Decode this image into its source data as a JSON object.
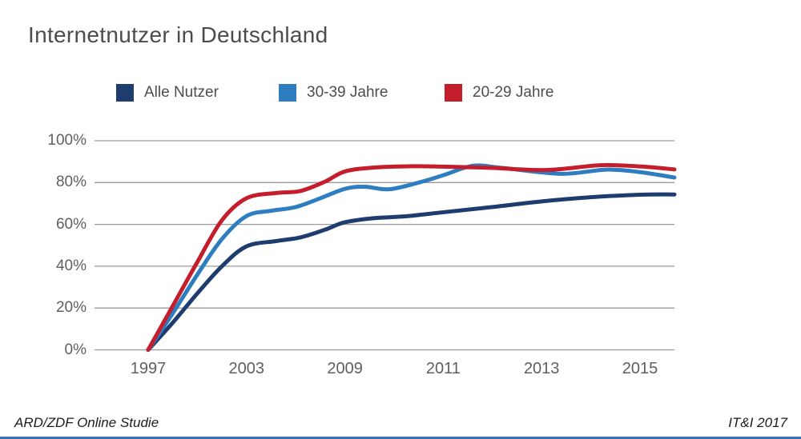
{
  "title": "Internetnutzer in Deutschland",
  "footer": {
    "source": "ARD/ZDF Online Studie",
    "credit": "IT&I 2017"
  },
  "colors": {
    "accent_bar": "#3a73ae",
    "grid": "#9a9a9a",
    "title_text": "#4c4c4c",
    "tick_text": "#5f5f5f"
  },
  "chart_data": {
    "type": "line",
    "title": "Internetnutzer in Deutschland",
    "xlabel": "",
    "ylabel": "",
    "ylim": [
      0,
      100
    ],
    "grid": true,
    "legend_position": "top",
    "y_ticks_percent": [
      0,
      20,
      40,
      60,
      80,
      100
    ],
    "x_tick_units": [
      0,
      1,
      2,
      3,
      4,
      5
    ],
    "x_tick_labels": [
      "1997",
      "2003",
      "2009",
      "2011",
      "2013",
      "2015"
    ],
    "series": [
      {
        "name": "Alle Nutzer",
        "color": "#1e3c6e",
        "points": [
          [
            0,
            0
          ],
          [
            0.25,
            13
          ],
          [
            0.5,
            27
          ],
          [
            0.75,
            40
          ],
          [
            1,
            49.5
          ],
          [
            1.3,
            52
          ],
          [
            1.55,
            53.8
          ],
          [
            1.8,
            57.5
          ],
          [
            2,
            61
          ],
          [
            2.3,
            63
          ],
          [
            2.6,
            63.8
          ],
          [
            3,
            65.8
          ],
          [
            3.5,
            68.3
          ],
          [
            4,
            71
          ],
          [
            4.5,
            73
          ],
          [
            5,
            74.2
          ],
          [
            5.35,
            74.3
          ]
        ]
      },
      {
        "name": "30-39 Jahre",
        "color": "#2e7dc1",
        "points": [
          [
            0,
            0
          ],
          [
            0.25,
            17.5
          ],
          [
            0.5,
            36
          ],
          [
            0.75,
            53
          ],
          [
            1,
            64
          ],
          [
            1.25,
            66.5
          ],
          [
            1.5,
            68.3
          ],
          [
            1.75,
            72.5
          ],
          [
            2,
            77
          ],
          [
            2.2,
            78
          ],
          [
            2.45,
            76.8
          ],
          [
            2.75,
            80
          ],
          [
            3,
            83.5
          ],
          [
            3.3,
            88
          ],
          [
            3.6,
            87
          ],
          [
            4.2,
            84.2
          ],
          [
            4.66,
            86.2
          ],
          [
            5,
            85
          ],
          [
            5.35,
            82.4
          ]
        ]
      },
      {
        "name": "20-29 Jahre",
        "color": "#c41e2c",
        "points": [
          [
            0,
            0
          ],
          [
            0.25,
            21
          ],
          [
            0.5,
            42
          ],
          [
            0.75,
            62
          ],
          [
            1,
            72.5
          ],
          [
            1.3,
            75
          ],
          [
            1.55,
            76
          ],
          [
            1.8,
            80.5
          ],
          [
            2,
            85.3
          ],
          [
            2.3,
            87.2
          ],
          [
            2.7,
            87.8
          ],
          [
            3,
            87.6
          ],
          [
            3.5,
            87
          ],
          [
            4.05,
            86
          ],
          [
            4.6,
            88.3
          ],
          [
            5,
            87.7
          ],
          [
            5.35,
            86.3
          ]
        ]
      }
    ]
  }
}
